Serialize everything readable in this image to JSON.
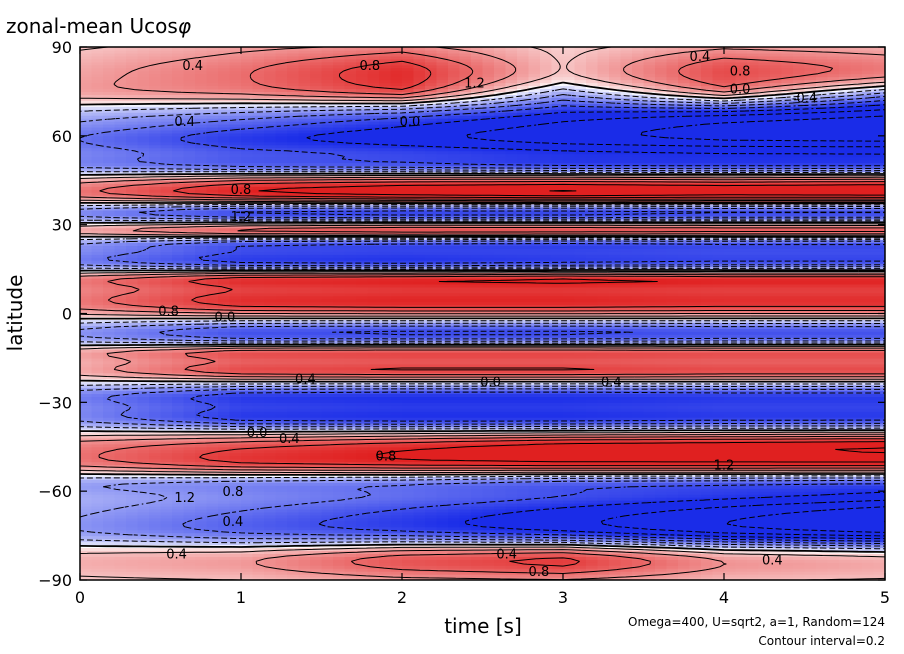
{
  "chart_data": {
    "type": "heatmap",
    "subtype": "contour",
    "title": "zonal-mean Ucos",
    "title_symbol": "φ",
    "xlabel": "time [s]",
    "ylabel": "latitude",
    "xlim": [
      0,
      5
    ],
    "ylim": [
      -90,
      90
    ],
    "xticks": [
      0,
      1,
      2,
      3,
      4,
      5
    ],
    "yticks": [
      -90,
      -60,
      -30,
      0,
      30,
      60,
      90
    ],
    "grid": false,
    "colormap": "blue-white-red",
    "colors": {
      "positive": "#e02020",
      "negative": "#1a2ce8",
      "zero": "#ffffff",
      "contour": "#000000"
    },
    "annotations": [
      "Omega=400, U=sqrt2, a=1, Random=124",
      "Contour interval=0.2"
    ],
    "contour_interval": 0.2,
    "contour_labels": [
      {
        "t": 0.7,
        "lat": 84,
        "text": "0.4"
      },
      {
        "t": 1.8,
        "lat": 84,
        "text": "0.8"
      },
      {
        "t": 2.45,
        "lat": 78,
        "text": "1.2"
      },
      {
        "t": 3.85,
        "lat": 87,
        "text": "0.4"
      },
      {
        "t": 4.1,
        "lat": 82,
        "text": "0.8"
      },
      {
        "t": 4.1,
        "lat": 76,
        "text": "0.0"
      },
      {
        "t": 4.5,
        "lat": 73,
        "text": "-0.4"
      },
      {
        "t": 0.65,
        "lat": 65,
        "text": "0.4"
      },
      {
        "t": 2.05,
        "lat": 65,
        "text": "0.0"
      },
      {
        "t": 1.0,
        "lat": 42,
        "text": "0.8"
      },
      {
        "t": 1.0,
        "lat": 33,
        "text": "1.2"
      },
      {
        "t": 0.55,
        "lat": 1,
        "text": "0.8"
      },
      {
        "t": 0.9,
        "lat": -1,
        "text": "0.0"
      },
      {
        "t": 1.4,
        "lat": -22,
        "text": "0.4"
      },
      {
        "t": 2.55,
        "lat": -23,
        "text": "0.0"
      },
      {
        "t": 3.3,
        "lat": -23,
        "text": "0.4"
      },
      {
        "t": 1.1,
        "lat": -40,
        "text": "0.0"
      },
      {
        "t": 1.3,
        "lat": -42,
        "text": "0.4"
      },
      {
        "t": 1.9,
        "lat": -48,
        "text": "0.8"
      },
      {
        "t": 0.65,
        "lat": -62,
        "text": "1.2"
      },
      {
        "t": 0.95,
        "lat": -60,
        "text": "0.8"
      },
      {
        "t": 0.95,
        "lat": -70,
        "text": "0.4"
      },
      {
        "t": 4.0,
        "lat": -51,
        "text": "1.2"
      },
      {
        "t": 0.6,
        "lat": -81,
        "text": "0.4"
      },
      {
        "t": 2.65,
        "lat": -81,
        "text": "0.4"
      },
      {
        "t": 2.85,
        "lat": -87,
        "text": "0.8"
      },
      {
        "t": 4.3,
        "lat": -83,
        "text": "0.4"
      }
    ],
    "bands": [
      {
        "lat": 90,
        "w": 2.5,
        "a": [
          0.05,
          0.1,
          0.1,
          0.05,
          0.05,
          0.05
        ]
      },
      {
        "lat": 82,
        "w": 6,
        "a": [
          0.3,
          0.55,
          0.9,
          0.2,
          0.75,
          0.55
        ]
      },
      {
        "lat": 74,
        "w": 3.5,
        "a": [
          0.25,
          0.3,
          0.45,
          -0.2,
          0.3,
          -0.35
        ]
      },
      {
        "lat": 66,
        "w": 5,
        "a": [
          -0.3,
          -0.5,
          -0.75,
          -1.0,
          -1.2,
          -1.3
        ]
      },
      {
        "lat": 58,
        "w": 4,
        "a": [
          -0.5,
          -0.75,
          -0.85,
          -0.95,
          -1.0,
          -1.0
        ]
      },
      {
        "lat": 50,
        "w": 3,
        "a": [
          -0.45,
          -0.65,
          -0.7,
          -0.8,
          -0.8,
          -0.8
        ]
      },
      {
        "lat": 44,
        "w": 3,
        "a": [
          0.4,
          0.75,
          0.85,
          0.9,
          0.85,
          0.9
        ]
      },
      {
        "lat": 40,
        "w": 2.2,
        "a": [
          0.35,
          0.6,
          0.7,
          0.75,
          0.7,
          0.7
        ]
      },
      {
        "lat": 34,
        "w": 2.5,
        "a": [
          -0.5,
          -0.85,
          -0.9,
          -0.9,
          -0.85,
          -0.85
        ]
      },
      {
        "lat": 28,
        "w": 2.2,
        "a": [
          0.4,
          0.8,
          0.9,
          0.9,
          0.85,
          0.85
        ]
      },
      {
        "lat": 24,
        "w": 2.2,
        "a": [
          -0.35,
          -0.7,
          -0.75,
          -0.8,
          -0.75,
          -0.75
        ]
      },
      {
        "lat": 18,
        "w": 3,
        "a": [
          -0.55,
          -0.9,
          -0.95,
          -0.9,
          -0.85,
          -0.85
        ]
      },
      {
        "lat": 12,
        "w": 2.2,
        "a": [
          0.4,
          0.7,
          0.75,
          0.8,
          0.75,
          0.75
        ]
      },
      {
        "lat": 4,
        "w": 5,
        "a": [
          0.55,
          0.95,
          1.0,
          1.0,
          0.95,
          0.95
        ]
      },
      {
        "lat": -6,
        "w": 4,
        "a": [
          -0.5,
          -0.9,
          -0.95,
          -0.95,
          -0.9,
          -0.9
        ]
      },
      {
        "lat": -13,
        "w": 2.2,
        "a": [
          0.4,
          0.85,
          0.9,
          0.9,
          0.85,
          0.85
        ]
      },
      {
        "lat": -19,
        "w": 2.5,
        "a": [
          0.3,
          0.75,
          0.8,
          0.8,
          0.75,
          0.75
        ]
      },
      {
        "lat": -28,
        "w": 3,
        "a": [
          -0.5,
          -0.85,
          -0.9,
          -0.9,
          -0.85,
          -0.85
        ]
      },
      {
        "lat": -35,
        "w": 3,
        "a": [
          -0.45,
          -0.85,
          -0.9,
          -0.9,
          -0.85,
          -0.85
        ]
      },
      {
        "lat": -44,
        "w": 3,
        "a": [
          0.35,
          0.5,
          0.65,
          0.8,
          0.85,
          0.9
        ]
      },
      {
        "lat": -50,
        "w": 3.5,
        "a": [
          0.5,
          0.8,
          0.9,
          0.95,
          0.95,
          0.95
        ]
      },
      {
        "lat": -57,
        "w": 3,
        "a": [
          -0.35,
          -0.45,
          -0.5,
          -0.6,
          -0.6,
          -0.6
        ]
      },
      {
        "lat": -66,
        "w": 5,
        "a": [
          -0.3,
          -0.5,
          -0.7,
          -0.9,
          -1.1,
          -1.3
        ]
      },
      {
        "lat": -74,
        "w": 4,
        "a": [
          -0.35,
          -0.55,
          -0.7,
          -0.85,
          -1.0,
          -1.1
        ]
      },
      {
        "lat": -83,
        "w": 5,
        "a": [
          0.3,
          0.4,
          0.75,
          0.9,
          0.45,
          0.35
        ]
      },
      {
        "lat": -90,
        "w": 2.5,
        "a": [
          0.05,
          0.05,
          0.05,
          0.05,
          0.05,
          0.05
        ]
      }
    ]
  }
}
